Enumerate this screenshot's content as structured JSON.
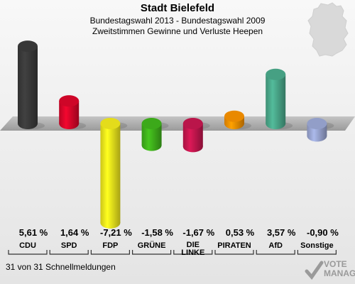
{
  "header": {
    "title": "Stadt Bielefeld",
    "subtitle1": "Bundestagswahl 2013 - Bundestagswahl 2009",
    "subtitle2": "Zweitstimmen Gewinne und Verluste Heepen"
  },
  "footer": {
    "status": "31 von 31 Schnellmeldungen"
  },
  "logo": {
    "line1": "VOTE",
    "line2": "MANAGER"
  },
  "chart_data": {
    "type": "bar",
    "title": "Stadt Bielefeld",
    "subtitle": "Bundestagswahl 2013 - Bundestagswahl 2009",
    "categories": [
      "CDU",
      "SPD",
      "FDP",
      "GRÜNE",
      "DIE LINKE",
      "PIRATEN",
      "AfD",
      "Sonstige"
    ],
    "category_lines": [
      [
        "CDU"
      ],
      [
        "SPD"
      ],
      [
        "FDP"
      ],
      [
        "GRÜNE"
      ],
      [
        "DIE",
        "LINKE"
      ],
      [
        "PIRATEN"
      ],
      [
        "AfD"
      ],
      [
        "Sonstige"
      ]
    ],
    "values": [
      5.61,
      1.64,
      -7.21,
      -1.58,
      -1.67,
      0.53,
      3.57,
      -0.9
    ],
    "value_labels": [
      "5,61 %",
      "1,64 %",
      "-7,21 %",
      "-1,58 %",
      "-1,67 %",
      "0,53 %",
      "3,57 %",
      "-0,90 %"
    ],
    "colors": [
      "#3a3a3a",
      "#d9062a",
      "#f0e81c",
      "#3fb21b",
      "#c4164e",
      "#f59000",
      "#4aa88a",
      "#9aa6d2"
    ],
    "ylim": [
      -7.5,
      6
    ]
  }
}
